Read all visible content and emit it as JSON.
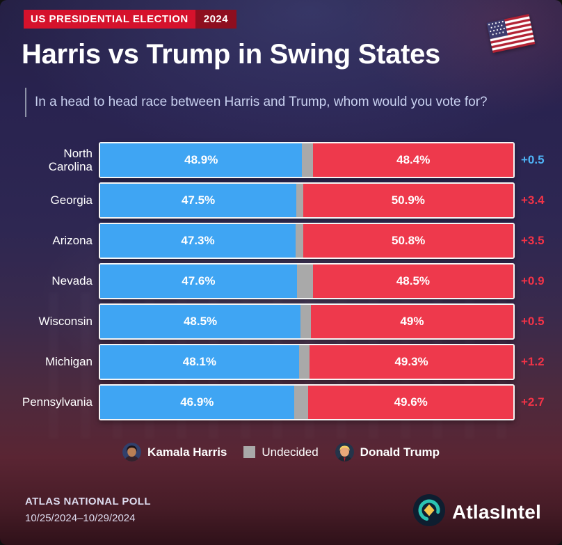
{
  "badge": {
    "label": "US PRESIDENTIAL ELECTION",
    "year": "2024"
  },
  "chart_data": {
    "type": "bar",
    "orientation": "horizontal-stacked",
    "title": "Harris vs Trump in Swing States",
    "subtitle": "In a head to head race between Harris and Trump, whom would you vote for?",
    "unit": "%",
    "x_range": [
      0,
      100
    ],
    "legend": [
      {
        "name": "Kamala Harris",
        "color": "#3FA5F3"
      },
      {
        "name": "Undecided",
        "color": "#A9A9A9"
      },
      {
        "name": "Donald Trump",
        "color": "#EE394C"
      }
    ],
    "margin_colors": {
      "harris": "#4FB3F6",
      "trump": "#F23347"
    },
    "rows": [
      {
        "state": "North Carolina",
        "harris": 48.9,
        "trump": 48.4,
        "undecided": 2.7,
        "harris_label": "48.9%",
        "trump_label": "48.4%",
        "margin_label": "+0.5",
        "leader": "harris"
      },
      {
        "state": "Georgia",
        "harris": 47.5,
        "trump": 50.9,
        "undecided": 1.6,
        "harris_label": "47.5%",
        "trump_label": "50.9%",
        "margin_label": "+3.4",
        "leader": "trump"
      },
      {
        "state": "Arizona",
        "harris": 47.3,
        "trump": 50.8,
        "undecided": 1.9,
        "harris_label": "47.3%",
        "trump_label": "50.8%",
        "margin_label": "+3.5",
        "leader": "trump"
      },
      {
        "state": "Nevada",
        "harris": 47.6,
        "trump": 48.5,
        "undecided": 3.9,
        "harris_label": "47.6%",
        "trump_label": "48.5%",
        "margin_label": "+0.9",
        "leader": "trump"
      },
      {
        "state": "Wisconsin",
        "harris": 48.5,
        "trump": 49.0,
        "undecided": 2.5,
        "harris_label": "48.5%",
        "trump_label": "49%",
        "margin_label": "+0.5",
        "leader": "trump"
      },
      {
        "state": "Michigan",
        "harris": 48.1,
        "trump": 49.3,
        "undecided": 2.6,
        "harris_label": "48.1%",
        "trump_label": "49.3%",
        "margin_label": "+1.2",
        "leader": "trump"
      },
      {
        "state": "Pennsylvania",
        "harris": 46.9,
        "trump": 49.6,
        "undecided": 3.5,
        "harris_label": "46.9%",
        "trump_label": "49.6%",
        "margin_label": "+2.7",
        "leader": "trump"
      }
    ]
  },
  "footer": {
    "poll_name": "ATLAS NATIONAL POLL",
    "poll_dates": "10/25/2024–10/29/2024",
    "brand": "AtlasIntel"
  }
}
